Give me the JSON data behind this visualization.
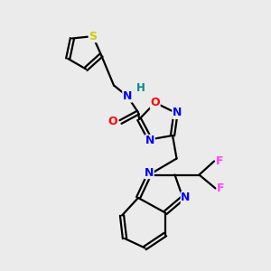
{
  "bg_color": "#ebebeb",
  "bond_color": "#000000",
  "atom_colors": {
    "N": "#0000ff",
    "O": "#ff0000",
    "S": "#cccc00",
    "F": "#ff44ff",
    "H": "#008888",
    "C": "#000000"
  },
  "figsize": [
    3.0,
    3.0
  ],
  "dpi": 100
}
